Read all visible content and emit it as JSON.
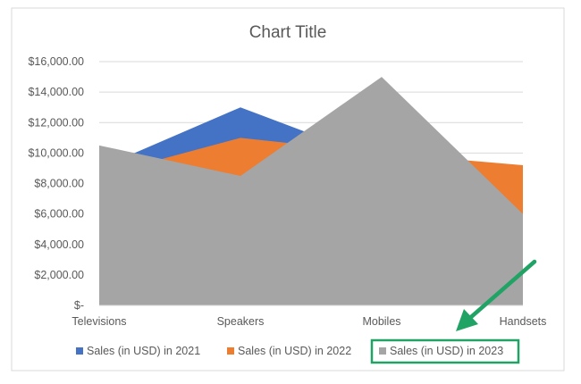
{
  "chart_data": {
    "type": "area",
    "title": "Chart Title",
    "categories": [
      "Televisions",
      "Speakers",
      "Mobiles",
      "Handsets"
    ],
    "y_ticks": [
      "$-",
      "$2,000.00",
      "$4,000.00",
      "$6,000.00",
      "$8,000.00",
      "$10,000.00",
      "$12,000.00",
      "$14,000.00",
      "$16,000.00"
    ],
    "ylim": [
      0,
      16000
    ],
    "grid": true,
    "legend_position": "bottom",
    "series": [
      {
        "name": "Sales (in USD) in 2021",
        "color": "#4472C4",
        "values": [
          9000,
          13000,
          9500,
          9000
        ]
      },
      {
        "name": "Sales (in USD) in 2022",
        "color": "#ED7D31",
        "values": [
          8500,
          11000,
          10000,
          9200
        ]
      },
      {
        "name": "Sales (in USD) in 2023",
        "color": "#A5A5A5",
        "values": [
          10500,
          8500,
          15000,
          6000
        ]
      }
    ],
    "highlight": {
      "legend_item": "Sales (in USD) in 2023",
      "color": "#21A366",
      "arrow": true
    }
  }
}
